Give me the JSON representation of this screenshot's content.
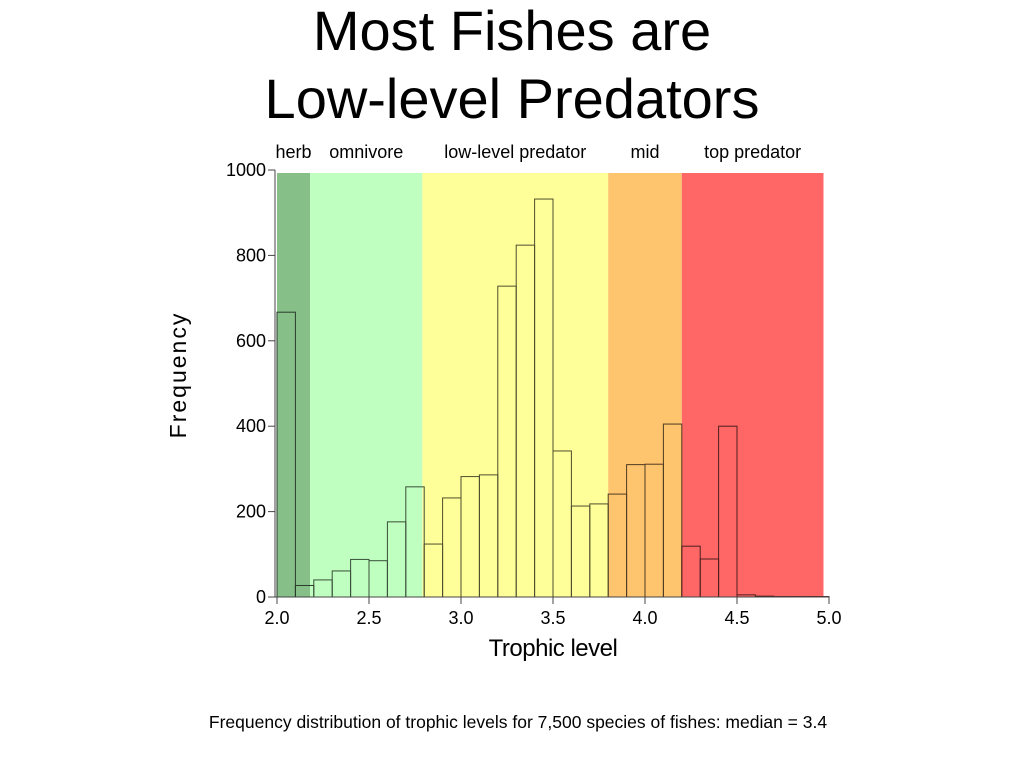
{
  "slide": {
    "title_lines": [
      "Most Fishes are",
      "Low-level Predators"
    ],
    "caption": "Frequency distribution of trophic levels for 7,500 species of fishes: median = 3.4"
  },
  "chart_data": {
    "type": "bar",
    "xlabel": "Trophic level",
    "ylabel": "Frequency",
    "xlim": [
      2.0,
      5.0
    ],
    "ylim": [
      0,
      1000
    ],
    "xticks": [
      "2.0",
      "2.5",
      "3.0",
      "3.5",
      "4.0",
      "4.5",
      "5.0"
    ],
    "yticks": [
      "0",
      "200",
      "400",
      "600",
      "800",
      "1000"
    ],
    "grid": false,
    "bin_edges": [
      2.0,
      2.1,
      2.2,
      2.3,
      2.4,
      2.5,
      2.6,
      2.7,
      2.8,
      2.9,
      3.0,
      3.1,
      3.2,
      3.3,
      3.4,
      3.5,
      3.6,
      3.7,
      3.8,
      3.9,
      4.0,
      4.1,
      4.2,
      4.3,
      4.4,
      4.5,
      4.6,
      4.7,
      4.8,
      4.9,
      5.0
    ],
    "values": [
      667,
      27,
      40,
      61,
      88,
      85,
      176,
      258,
      124,
      232,
      282,
      286,
      728,
      824,
      932,
      342,
      213,
      218,
      241,
      310,
      311,
      405,
      119,
      89,
      400,
      5,
      2,
      1,
      1,
      1
    ],
    "regions": [
      {
        "label": "herb",
        "from": 2.0,
        "to": 2.18,
        "color": "#86C088"
      },
      {
        "label": "omnivore",
        "from": 2.18,
        "to": 2.79,
        "color": "#BFFFBF"
      },
      {
        "label": "low-level predator",
        "from": 2.79,
        "to": 3.8,
        "color": "#FFFF99"
      },
      {
        "label": "mid",
        "from": 3.8,
        "to": 4.2,
        "color": "#FFC46E"
      },
      {
        "label": "top predator",
        "from": 4.2,
        "to": 4.97,
        "color": "#FF6666"
      }
    ]
  }
}
